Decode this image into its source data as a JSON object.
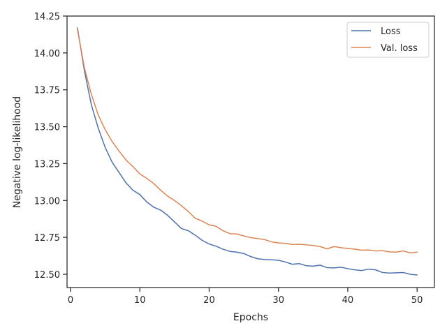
{
  "chart_data": {
    "type": "line",
    "title": "",
    "xlabel": "Epochs",
    "ylabel": "Negative log-likelihood",
    "xlim": [
      -0.5,
      52.5
    ],
    "ylim": [
      12.41,
      14.25
    ],
    "xticks": [
      0,
      10,
      20,
      30,
      40,
      50
    ],
    "yticks": [
      12.5,
      12.75,
      13.0,
      13.25,
      13.5,
      13.75,
      14.0,
      14.25
    ],
    "xtick_labels": [
      "0",
      "10",
      "20",
      "30",
      "40",
      "50"
    ],
    "ytick_labels": [
      "12.50",
      "12.75",
      "13.00",
      "13.25",
      "13.50",
      "13.75",
      "14.00",
      "14.25"
    ],
    "legend_position": "top-right",
    "x": [
      1,
      2,
      3,
      4,
      5,
      6,
      7,
      8,
      9,
      10,
      11,
      12,
      13,
      14,
      15,
      16,
      17,
      18,
      19,
      20,
      21,
      22,
      23,
      24,
      25,
      26,
      27,
      28,
      29,
      30,
      31,
      32,
      33,
      34,
      35,
      36,
      37,
      38,
      39,
      40,
      41,
      42,
      43,
      44,
      45,
      46,
      47,
      48,
      49,
      50
    ],
    "series": [
      {
        "name": "Loss",
        "color": "#4c72b0",
        "values": [
          14.17,
          13.88,
          13.65,
          13.49,
          13.36,
          13.26,
          13.19,
          13.12,
          13.07,
          13.04,
          12.99,
          12.955,
          12.935,
          12.9,
          12.855,
          12.81,
          12.795,
          12.765,
          12.73,
          12.705,
          12.69,
          12.67,
          12.655,
          12.65,
          12.64,
          12.62,
          12.605,
          12.6,
          12.598,
          12.595,
          12.583,
          12.568,
          12.572,
          12.558,
          12.555,
          12.562,
          12.545,
          12.543,
          12.548,
          12.538,
          12.53,
          12.525,
          12.535,
          12.53,
          12.512,
          12.508,
          12.51,
          12.512,
          12.5,
          12.495
        ]
      },
      {
        "name": "Val. loss",
        "color": "#dd8452",
        "values": [
          14.16,
          13.9,
          13.72,
          13.58,
          13.48,
          13.4,
          13.335,
          13.275,
          13.23,
          13.18,
          13.15,
          13.115,
          13.07,
          13.03,
          13.0,
          12.965,
          12.925,
          12.88,
          12.86,
          12.835,
          12.825,
          12.795,
          12.775,
          12.773,
          12.76,
          12.748,
          12.742,
          12.735,
          12.72,
          12.712,
          12.71,
          12.702,
          12.703,
          12.7,
          12.695,
          12.688,
          12.672,
          12.688,
          12.68,
          12.675,
          12.67,
          12.663,
          12.665,
          12.658,
          12.66,
          12.652,
          12.65,
          12.658,
          12.645,
          12.65
        ]
      }
    ]
  }
}
